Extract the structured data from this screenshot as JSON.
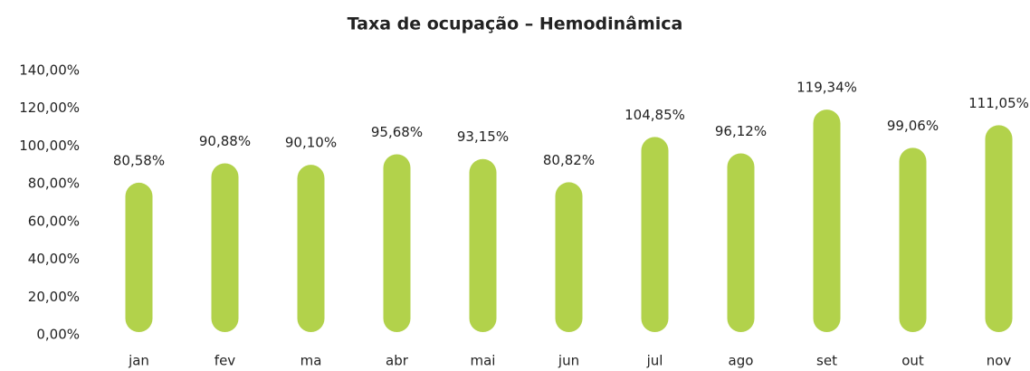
{
  "chart_data": {
    "type": "bar",
    "title": "Taxa de ocupação – Hemodinâmica",
    "categories": [
      "jan",
      "fev",
      "ma",
      "abr",
      "mai",
      "jun",
      "jul",
      "ago",
      "set",
      "out",
      "nov"
    ],
    "values": [
      80.58,
      90.88,
      90.1,
      95.68,
      93.15,
      80.82,
      104.85,
      96.12,
      119.34,
      99.06,
      111.05
    ],
    "value_labels": [
      "80,58%",
      "90,88%",
      "90,10%",
      "95,68%",
      "93,15%",
      "80,82%",
      "104,85%",
      "96,12%",
      "119,34%",
      "99,06%",
      "111,05%"
    ],
    "color": "#b2d24b",
    "ylim": [
      0,
      140
    ],
    "yticks": [
      {
        "value": 0,
        "label": "0,00%"
      },
      {
        "value": 20,
        "label": "20,00%"
      },
      {
        "value": 40,
        "label": "40,00%"
      },
      {
        "value": 60,
        "label": "60,00%"
      },
      {
        "value": 80,
        "label": "80,00%"
      },
      {
        "value": 100,
        "label": "100,00%"
      },
      {
        "value": 120,
        "label": "120,00%"
      },
      {
        "value": 140,
        "label": "140,00%"
      }
    ],
    "grid": false
  }
}
